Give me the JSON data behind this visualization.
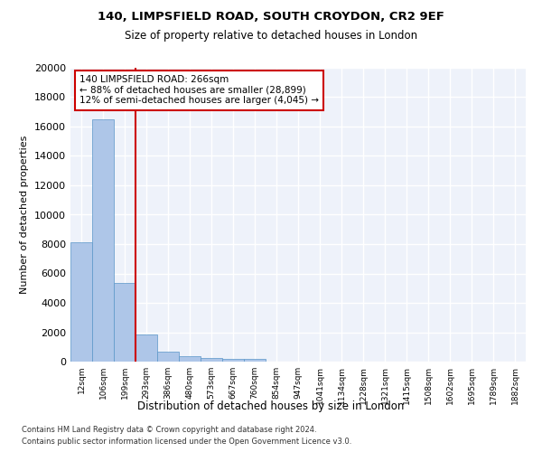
{
  "title_line1": "140, LIMPSFIELD ROAD, SOUTH CROYDON, CR2 9EF",
  "title_line2": "Size of property relative to detached houses in London",
  "xlabel": "Distribution of detached houses by size in London",
  "ylabel": "Number of detached properties",
  "bar_values": [
    8100,
    16500,
    5350,
    1850,
    700,
    350,
    275,
    200,
    175,
    0,
    0,
    0,
    0,
    0,
    0,
    0,
    0,
    0,
    0,
    0,
    0
  ],
  "categories": [
    "12sqm",
    "106sqm",
    "199sqm",
    "293sqm",
    "386sqm",
    "480sqm",
    "573sqm",
    "667sqm",
    "760sqm",
    "854sqm",
    "947sqm",
    "1041sqm",
    "1134sqm",
    "1228sqm",
    "1321sqm",
    "1415sqm",
    "1508sqm",
    "1602sqm",
    "1695sqm",
    "1789sqm",
    "1882sqm"
  ],
  "bar_color": "#aec6e8",
  "bar_edge_color": "#5a96c8",
  "annotation_text": "140 LIMPSFIELD ROAD: 266sqm\n← 88% of detached houses are smaller (28,899)\n12% of semi-detached houses are larger (4,045) →",
  "annotation_box_color": "#ffffff",
  "annotation_border_color": "#cc0000",
  "vline_color": "#cc0000",
  "ylim": [
    0,
    20000
  ],
  "yticks": [
    0,
    2000,
    4000,
    6000,
    8000,
    10000,
    12000,
    14000,
    16000,
    18000,
    20000
  ],
  "background_color": "#eef2fa",
  "grid_color": "#ffffff",
  "footer_line1": "Contains HM Land Registry data © Crown copyright and database right 2024.",
  "footer_line2": "Contains public sector information licensed under the Open Government Licence v3.0."
}
